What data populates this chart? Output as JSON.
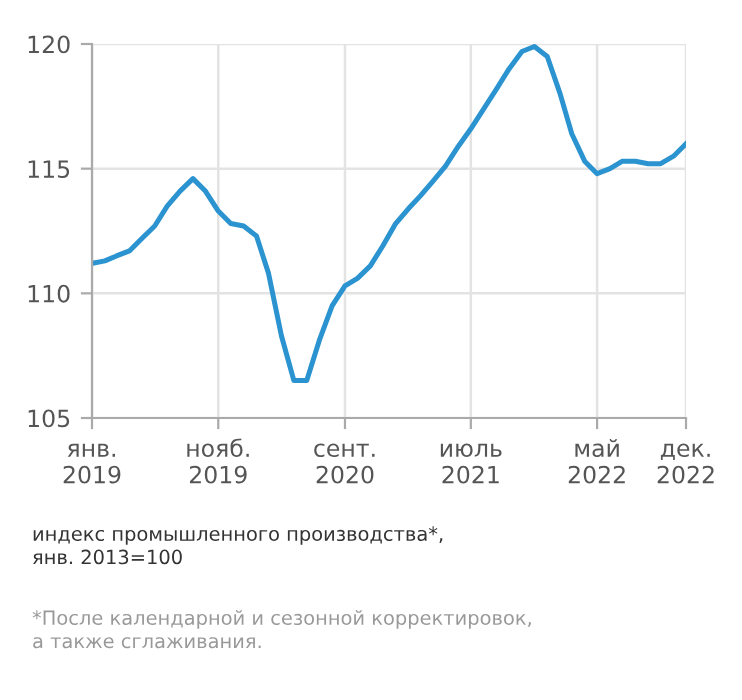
{
  "chart_data": {
    "type": "line",
    "x": [
      "2019-01",
      "2019-02",
      "2019-03",
      "2019-04",
      "2019-05",
      "2019-06",
      "2019-07",
      "2019-08",
      "2019-09",
      "2019-10",
      "2019-11",
      "2019-12",
      "2020-01",
      "2020-02",
      "2020-03",
      "2020-04",
      "2020-05",
      "2020-06",
      "2020-07",
      "2020-08",
      "2020-09",
      "2020-10",
      "2020-11",
      "2020-12",
      "2021-01",
      "2021-02",
      "2021-03",
      "2021-04",
      "2021-05",
      "2021-06",
      "2021-07",
      "2021-08",
      "2021-09",
      "2021-10",
      "2021-11",
      "2021-12",
      "2022-01",
      "2022-02",
      "2022-03",
      "2022-04",
      "2022-05",
      "2022-06",
      "2022-07",
      "2022-08",
      "2022-09",
      "2022-10",
      "2022-11",
      "2022-12"
    ],
    "series": [
      {
        "color": "#2b93cf",
        "values": [
          111.2,
          111.3,
          111.5,
          111.7,
          112.2,
          112.7,
          113.5,
          114.1,
          114.6,
          114.1,
          113.3,
          112.8,
          112.7,
          112.3,
          110.8,
          108.3,
          106.5,
          106.5,
          108.1,
          109.5,
          110.3,
          110.6,
          111.1,
          111.9,
          112.8,
          113.4,
          113.9,
          114.5,
          115.1,
          115.9,
          116.6,
          117.4,
          118.2,
          119.0,
          119.7,
          119.9,
          119.5,
          118.0,
          116.4,
          115.3,
          114.8,
          115.0,
          115.3,
          115.3,
          115.2,
          115.2,
          115.5,
          116.0
        ]
      }
    ],
    "xlim": [
      "2019-01",
      "2022-12"
    ],
    "xticks": [
      {
        "value": "2019-01",
        "label": "янв.\n2019"
      },
      {
        "value": "2019-11",
        "label": "нояб.\n2019"
      },
      {
        "value": "2020-09",
        "label": "сент.\n2020"
      },
      {
        "value": "2021-07",
        "label": "июль\n2021"
      },
      {
        "value": "2022-05",
        "label": "май\n2022"
      },
      {
        "value": "2022-12",
        "label": "дек.\n2022"
      }
    ],
    "ylim": [
      105,
      120
    ],
    "yticks": [
      105,
      110,
      115,
      120
    ],
    "grid": true,
    "marker": "none",
    "line_style": "solid",
    "annotations": [
      "индекс промышленного производства*,\nянв. 2013=100",
      "*После календарной и сезонной корректировок,\nа также сглаживания."
    ]
  }
}
